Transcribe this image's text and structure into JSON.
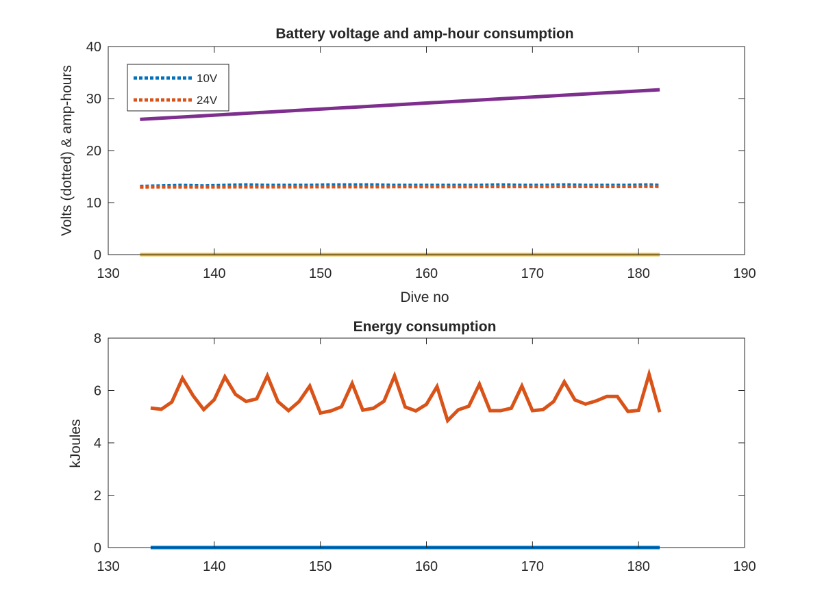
{
  "chart_data": [
    {
      "type": "line",
      "title": "Battery voltage and amp-hour consumption",
      "xlabel": "Dive no",
      "ylabel": "Volts (dotted) & amp-hours",
      "xlim": [
        130,
        190
      ],
      "ylim": [
        0,
        40
      ],
      "xticks": [
        "130",
        "140",
        "150",
        "160",
        "170",
        "180",
        "190"
      ],
      "yticks": [
        "0",
        "10",
        "20",
        "30",
        "40"
      ],
      "legend_position": "top-left",
      "series": [
        {
          "name": "10V",
          "style": "dotted",
          "color": "#0072BD",
          "x": [
            133,
            135,
            137,
            139,
            141,
            143,
            145,
            147,
            149,
            151,
            153,
            155,
            157,
            159,
            161,
            163,
            165,
            167,
            169,
            171,
            173,
            175,
            177,
            179,
            181,
            182
          ],
          "y": [
            13.1,
            13.2,
            13.3,
            13.2,
            13.3,
            13.4,
            13.3,
            13.3,
            13.3,
            13.4,
            13.4,
            13.4,
            13.3,
            13.3,
            13.3,
            13.3,
            13.3,
            13.4,
            13.3,
            13.3,
            13.4,
            13.3,
            13.3,
            13.3,
            13.4,
            13.3
          ]
        },
        {
          "name": "24V",
          "style": "dotted",
          "color": "#D95319",
          "x": [
            133,
            182
          ],
          "y": [
            13.0,
            13.1
          ]
        },
        {
          "style": "solid",
          "color": "#7E2F8E",
          "x": [
            133,
            182
          ],
          "y": [
            26.0,
            31.7
          ]
        },
        {
          "style": "solid",
          "color": "#EDB120",
          "x": [
            133,
            182
          ],
          "y": [
            0,
            0
          ]
        }
      ]
    },
    {
      "type": "line",
      "title": "Energy consumption",
      "xlabel": "",
      "ylabel": "kJoules",
      "xlim": [
        130,
        190
      ],
      "ylim": [
        0,
        8
      ],
      "xticks": [
        "130",
        "140",
        "150",
        "160",
        "170",
        "180",
        "190"
      ],
      "yticks": [
        "0",
        "2",
        "4",
        "6",
        "8"
      ],
      "series": [
        {
          "style": "solid",
          "color": "#0072BD",
          "x": [
            134,
            182
          ],
          "y": [
            0,
            0
          ]
        },
        {
          "style": "solid",
          "color": "#D95319",
          "x": [
            134,
            135,
            136,
            137,
            138,
            139,
            140,
            141,
            142,
            143,
            144,
            145,
            146,
            147,
            148,
            149,
            150,
            151,
            152,
            153,
            154,
            155,
            156,
            157,
            158,
            159,
            160,
            161,
            162,
            163,
            164,
            165,
            166,
            167,
            168,
            169,
            170,
            171,
            172,
            173,
            174,
            175,
            176,
            177,
            178,
            179,
            180,
            181,
            182
          ],
          "y": [
            5.33,
            5.28,
            5.56,
            6.47,
            5.8,
            5.27,
            5.65,
            6.52,
            5.85,
            5.58,
            5.68,
            6.56,
            5.58,
            5.23,
            5.58,
            6.17,
            5.14,
            5.22,
            5.38,
            6.27,
            5.25,
            5.32,
            5.59,
            6.56,
            5.37,
            5.22,
            5.47,
            6.15,
            4.85,
            5.26,
            5.4,
            6.24,
            5.23,
            5.23,
            5.32,
            6.17,
            5.23,
            5.27,
            5.58,
            6.33,
            5.64,
            5.48,
            5.6,
            5.77,
            5.77,
            5.2,
            5.24,
            6.62,
            5.17
          ]
        }
      ]
    }
  ]
}
